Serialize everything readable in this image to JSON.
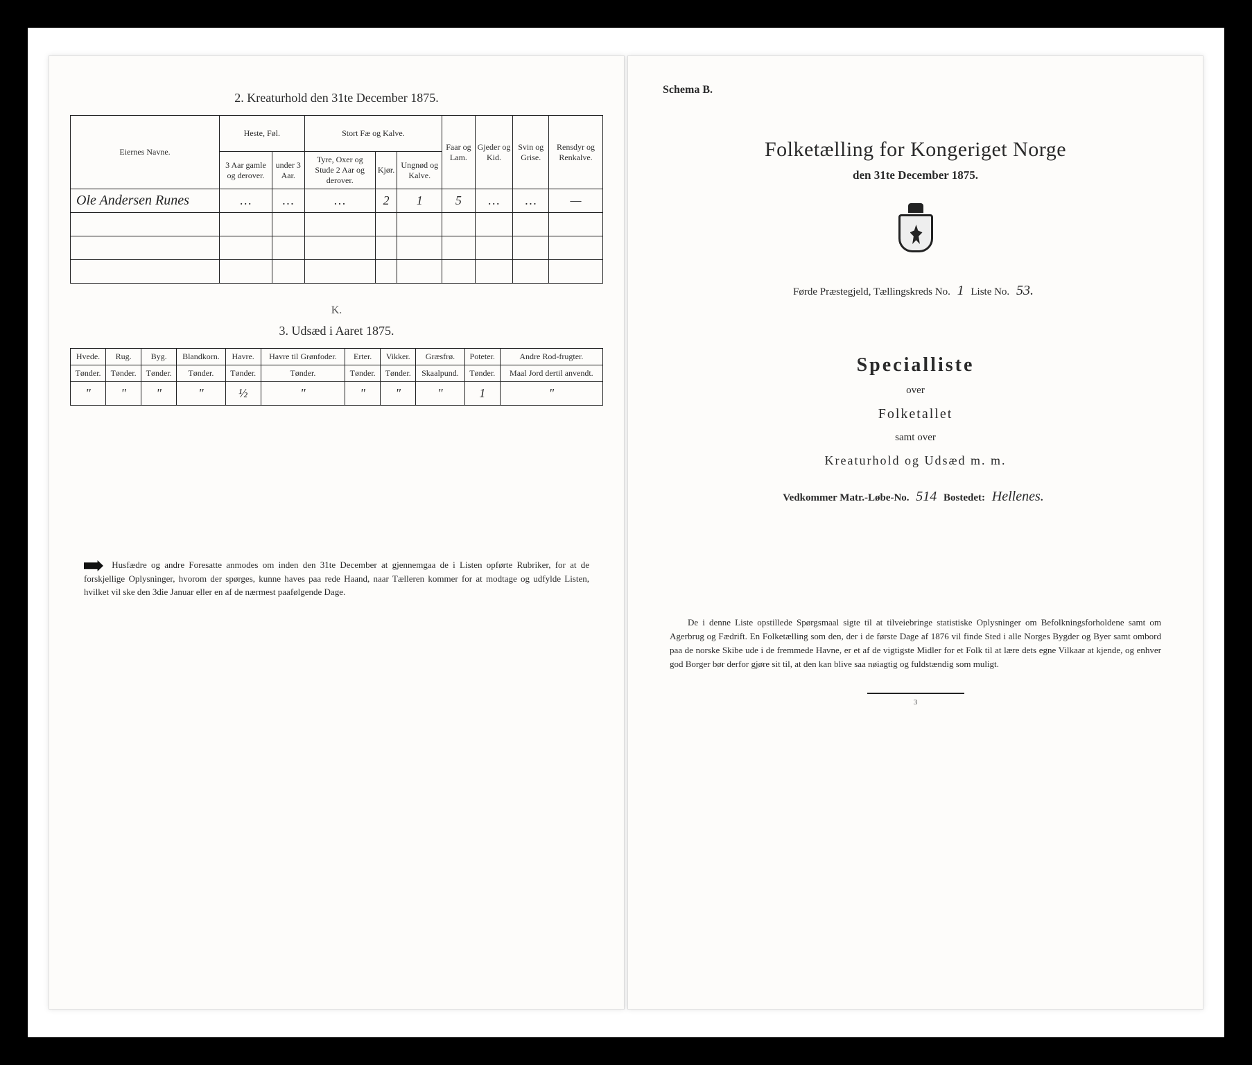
{
  "left": {
    "section2_title": "2.  Kreaturhold den 31te December 1875.",
    "table2": {
      "headers_top": {
        "owner": "Eiernes Navne.",
        "horses": "Heste, Føl.",
        "cattle": "Stort Fæ og Kalve.",
        "sheep": "Faar og Lam.",
        "goats": "Gjeder og Kid.",
        "pigs": "Svin og Grise.",
        "reindeer": "Rensdyr og Renkalve."
      },
      "headers_sub": {
        "h1": "3 Aar gamle og derover.",
        "h2": "under 3 Aar.",
        "c1": "Tyre, Oxer og Stude 2 Aar og derover.",
        "c2": "Kjør.",
        "c3": "Ungnød og Kalve."
      },
      "row": {
        "name": "Ole Andersen Runes",
        "horses1": "…",
        "horses2": "…",
        "cattle1": "…",
        "cattle2": "2",
        "cattle3": "1",
        "sheep": "5",
        "goats": "…",
        "pigs": "…",
        "reindeer": "—"
      }
    },
    "mid_mark": "K.",
    "section3_title": "3.  Udsæd i Aaret 1875.",
    "table3": {
      "headers": [
        "Hvede.",
        "Rug.",
        "Byg.",
        "Blandkorn.",
        "Havre.",
        "Havre til Grønfoder.",
        "Erter.",
        "Vikker.",
        "Græsfrø.",
        "Poteter.",
        "Andre Rod-frugter."
      ],
      "sub": [
        "Tønder.",
        "Tønder.",
        "Tønder.",
        "Tønder.",
        "Tønder.",
        "Tønder.",
        "Tønder.",
        "Tønder.",
        "Skaalpund.",
        "Tønder.",
        "Maal Jord dertil anvendt."
      ],
      "row": [
        "\"",
        "\"",
        "\"",
        "\"",
        "½",
        "\"",
        "\"",
        "\"",
        "\"",
        "1",
        "\""
      ]
    },
    "footnote": "Husfædre og andre Foresatte anmodes om inden den 31te December at gjennemgaa de i Listen opførte Rubriker, for at de forskjellige Oplysninger, hvorom der spørges, kunne haves paa rede Haand, naar Tælleren kommer for at modtage og udfylde Listen, hvilket vil ske den 3die Januar eller en af de nærmest paafølgende Dage."
  },
  "right": {
    "schema": "Schema B.",
    "title": "Folketælling for Kongeriget Norge",
    "date_line": "den 31te December 1875.",
    "district_prefix": "Førde",
    "district_label": " Præstegjeld,  Tællingskreds No. ",
    "district_no": "1",
    "liste_label": "        Liste No. ",
    "liste_no": "53.",
    "spec_title": "Specialliste",
    "spec_over": "over",
    "spec_folketallet": "Folketallet",
    "spec_samt": "samt over",
    "spec_kreatur": "Kreaturhold og Udsæd m. m.",
    "matr_label": "Vedkommer Matr.-Løbe-No. ",
    "matr_no": "514",
    "bosted_label": "     Bostedet: ",
    "bosted": "Hellenes.",
    "footnote": "De i denne Liste opstillede Spørgsmaal sigte til at tilveiebringe statistiske Oplysninger om Befolkningsforholdene samt om Agerbrug og Fædrift.  En Folketælling som den, der i de første Dage af 1876 vil finde Sted i alle Norges Bygder og Byer samt ombord paa de norske Skibe ude i de fremmede Havne, er et af de vigtigste Midler for et Folk til at lære dets egne Vilkaar at kjende, og enhver god Borger bør derfor gjøre sit til, at den kan blive saa nøiagtig og fuldstændig som muligt.",
    "page_no": "3"
  }
}
